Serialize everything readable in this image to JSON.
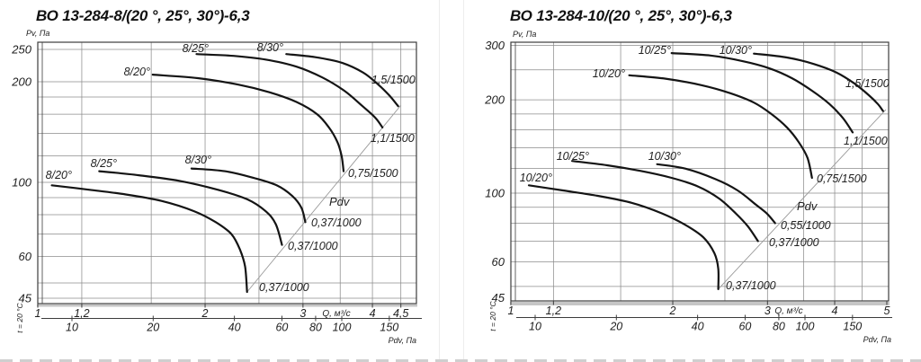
{
  "page": {
    "background": "#ffffff",
    "text_color": "#1f1f1f",
    "grid_color": "#8c8c8c",
    "frame_color": "#3c3c3c",
    "curve_color": "#141414",
    "diagonal_color": "#9a9a9a",
    "band_color": "#b3b3b3"
  },
  "chart_data": [
    {
      "type": "line",
      "title": "ВО 13-284-8/(20 °, 25°, 30°)-6,3",
      "ylabel": "Pv, Па",
      "xlabel": "Q, м³/с",
      "pdv_axis_label": "Pdv, Па",
      "pdv_diagonal_label": "Pdv",
      "temperature_note": "t = 20 °C",
      "xlim": [
        1,
        4.7
      ],
      "ylim": [
        45,
        260
      ],
      "grid": "log-log",
      "y_gridlines": [
        250,
        200,
        180,
        160,
        140,
        120,
        100,
        90,
        80,
        70,
        60,
        50,
        45
      ],
      "y_ticks": [
        {
          "v": 250,
          "label": "250"
        },
        {
          "v": 200,
          "label": "200"
        },
        {
          "v": 100,
          "label": "100"
        },
        {
          "v": 60,
          "label": "60"
        },
        {
          "v": 45,
          "label": "45"
        }
      ],
      "x_gridlines": [
        1.2,
        1.6,
        2,
        2.5,
        3,
        3.5,
        4,
        4.5
      ],
      "q_ticks": [
        {
          "v": 1,
          "label": "1"
        },
        {
          "v": 1.2,
          "label": "1,2"
        },
        {
          "v": 2,
          "label": "2"
        },
        {
          "v": 3,
          "label": "3"
        },
        {
          "v": 4,
          "label": "4"
        },
        {
          "v": 4.5,
          "label": "4,5"
        }
      ],
      "pdv_ticks": [
        {
          "v": 10,
          "label": "10"
        },
        {
          "v": 20,
          "label": "20"
        },
        {
          "v": 40,
          "label": "40"
        },
        {
          "v": 60,
          "label": "60"
        },
        {
          "v": 80,
          "label": "80"
        },
        {
          "v": 100,
          "label": "100"
        },
        {
          "v": 150,
          "label": "150"
        }
      ],
      "pdv_label_at": [
        366,
        229
      ],
      "diagonal": [
        [
          2.38,
          47
        ],
        [
          4.5,
          170
        ]
      ],
      "series": [
        {
          "name": "8/20° 1500rpm",
          "label": "8/20°",
          "label_at": [
            167,
            84
          ],
          "end_label": "0,75/1500",
          "end_label_at": [
            387,
            197
          ],
          "points": [
            [
              1.61,
              210
            ],
            [
              1.94,
              205
            ],
            [
              2.3,
              196
            ],
            [
              2.61,
              186
            ],
            [
              2.92,
              174
            ],
            [
              3.18,
              160
            ],
            [
              3.34,
              146
            ],
            [
              3.46,
              132
            ],
            [
              3.52,
              120
            ],
            [
              3.55,
              108
            ]
          ]
        },
        {
          "name": "8/25° 1500rpm",
          "label": "8/25°",
          "label_at": [
            232,
            58
          ],
          "end_label": "1,1/1500",
          "end_label_at": [
            412,
            158
          ],
          "points": [
            [
              1.93,
              242
            ],
            [
              2.25,
              239
            ],
            [
              2.57,
              233
            ],
            [
              2.92,
              222
            ],
            [
              3.25,
              206
            ],
            [
              3.56,
              188
            ],
            [
              3.84,
              169
            ],
            [
              4.05,
              156
            ],
            [
              4.17,
              146
            ]
          ]
        },
        {
          "name": "8/30° 1500rpm",
          "label": "8/30°",
          "label_at": [
            315,
            57
          ],
          "end_label": "1,5/1500",
          "end_label_at": [
            413,
            93
          ],
          "points": [
            [
              2.8,
              242
            ],
            [
              3.15,
              237
            ],
            [
              3.52,
              228
            ],
            [
              3.85,
              213
            ],
            [
              4.1,
              196
            ],
            [
              4.29,
              182
            ],
            [
              4.45,
              169
            ]
          ]
        },
        {
          "name": "8/20° 1000rpm",
          "label": "8/20°",
          "label_at": [
            80,
            199
          ],
          "end_label": "0,37/1000",
          "end_label_at": [
            288,
            324
          ],
          "points": [
            [
              1.06,
              98
            ],
            [
              1.24,
              95
            ],
            [
              1.44,
              92
            ],
            [
              1.67,
              88
            ],
            [
              1.91,
              82
            ],
            [
              2.09,
              76
            ],
            [
              2.23,
              70
            ],
            [
              2.31,
              63
            ],
            [
              2.36,
              56
            ],
            [
              2.38,
              47
            ]
          ]
        },
        {
          "name": "8/25° 1000rpm",
          "label": "8/25°",
          "label_at": [
            130,
            186
          ],
          "end_label": "0,37/1000",
          "end_label_at": [
            320,
            278
          ],
          "points": [
            [
              1.29,
              108
            ],
            [
              1.52,
              105
            ],
            [
              1.8,
              101
            ],
            [
              2.11,
              95
            ],
            [
              2.38,
              89
            ],
            [
              2.57,
              82
            ],
            [
              2.68,
              75
            ],
            [
              2.75,
              65
            ]
          ]
        },
        {
          "name": "8/30° 1000rpm",
          "label": "8/30°",
          "label_at": [
            235,
            182
          ],
          "end_label": "0,37/1000",
          "end_label_at": [
            346,
            252
          ],
          "points": [
            [
              1.89,
              110
            ],
            [
              2.17,
              108
            ],
            [
              2.45,
              103
            ],
            [
              2.69,
              98
            ],
            [
              2.87,
              91
            ],
            [
              2.98,
              84
            ],
            [
              3.03,
              76
            ]
          ]
        }
      ]
    },
    {
      "type": "line",
      "title": "ВО 13-284-10/(20 °, 25°, 30°)-6,3",
      "ylabel": "Pv, Па",
      "xlabel": "Q, м³/с",
      "pdv_axis_label": "Pdv, Па",
      "pdv_diagonal_label": "Pdv",
      "temperature_note": "t = 20 °C",
      "xlim": [
        1,
        5
      ],
      "ylim": [
        45,
        300
      ],
      "grid": "log-log",
      "y_gridlines": [
        300,
        250,
        200,
        180,
        160,
        140,
        120,
        100,
        90,
        80,
        70,
        60,
        50,
        45
      ],
      "y_ticks": [
        {
          "v": 300,
          "label": "300"
        },
        {
          "v": 200,
          "label": "200"
        },
        {
          "v": 100,
          "label": "100"
        },
        {
          "v": 60,
          "label": "60"
        },
        {
          "v": 45,
          "label": "45"
        }
      ],
      "x_gridlines": [
        1.2,
        1.6,
        2,
        2.5,
        3,
        3.5,
        4,
        4.5
      ],
      "q_ticks": [
        {
          "v": 1,
          "label": "1"
        },
        {
          "v": 1.2,
          "label": "1,2"
        },
        {
          "v": 2,
          "label": "2"
        },
        {
          "v": 3,
          "label": "3"
        },
        {
          "v": 4,
          "label": "4"
        },
        {
          "v": 5,
          "label": "5"
        }
      ],
      "pdv_ticks": [
        {
          "v": 10,
          "label": "10"
        },
        {
          "v": 20,
          "label": "20"
        },
        {
          "v": 40,
          "label": "40"
        },
        {
          "v": 60,
          "label": "60"
        },
        {
          "v": 80,
          "label": "80"
        },
        {
          "v": 100,
          "label": "100"
        },
        {
          "v": 150,
          "label": "150"
        }
      ],
      "pdv_label_at": [
        886,
        234
      ],
      "diagonal": [
        [
          2.43,
          49
        ],
        [
          4.98,
          186
        ]
      ],
      "series": [
        {
          "name": "10/20° 1500rpm",
          "label": "10/20°",
          "label_at": [
            695,
            86
          ],
          "end_label": "0,75/1500",
          "end_label_at": [
            908,
            203
          ],
          "points": [
            [
              1.66,
              240
            ],
            [
              1.94,
              234
            ],
            [
              2.26,
              223
            ],
            [
              2.56,
              210
            ],
            [
              2.83,
              196
            ],
            [
              3.05,
              180
            ],
            [
              3.26,
              163
            ],
            [
              3.43,
              146
            ],
            [
              3.56,
              130
            ],
            [
              3.63,
              112
            ]
          ]
        },
        {
          "name": "10/25° 1500rpm",
          "label": "10/25°",
          "label_at": [
            746,
            60
          ],
          "end_label": "1,1/1500",
          "end_label_at": [
            938,
            161
          ],
          "points": [
            [
              1.99,
              283
            ],
            [
              2.35,
              278
            ],
            [
              2.69,
              267
            ],
            [
              3.02,
              253
            ],
            [
              3.33,
              235
            ],
            [
              3.63,
              214
            ],
            [
              3.91,
              194
            ],
            [
              4.14,
              175
            ],
            [
              4.32,
              157
            ]
          ]
        },
        {
          "name": "10/30° 1500rpm",
          "label": "10/30°",
          "label_at": [
            836,
            60
          ],
          "end_label": "1,5/1500",
          "end_label_at": [
            940,
            97
          ],
          "points": [
            [
              2.83,
              282
            ],
            [
              3.26,
              274
            ],
            [
              3.66,
              261
            ],
            [
              4.03,
              245
            ],
            [
              4.35,
              226
            ],
            [
              4.63,
              207
            ],
            [
              4.81,
              194
            ],
            [
              4.92,
              184
            ]
          ]
        },
        {
          "name": "10/20° 1000rpm",
          "label": "10/20°",
          "label_at": [
            614,
            202
          ],
          "end_label": "0,37/1000",
          "end_label_at": [
            807,
            322
          ],
          "points": [
            [
              1.08,
              106
            ],
            [
              1.25,
              102
            ],
            [
              1.45,
              98
            ],
            [
              1.68,
              93
            ],
            [
              1.91,
              86
            ],
            [
              2.11,
              79
            ],
            [
              2.28,
              72
            ],
            [
              2.39,
              64
            ],
            [
              2.43,
              57
            ],
            [
              2.43,
              49
            ]
          ]
        },
        {
          "name": "10/25° 1000rpm",
          "label": "10/25°",
          "label_at": [
            655,
            178
          ],
          "end_label": "0,37/1000",
          "end_label_at": [
            855,
            274
          ],
          "points": [
            [
              1.3,
              127
            ],
            [
              1.51,
              123
            ],
            [
              1.74,
              118
            ],
            [
              1.99,
              112
            ],
            [
              2.23,
              105
            ],
            [
              2.44,
              96
            ],
            [
              2.62,
              86
            ],
            [
              2.76,
              78
            ],
            [
              2.88,
              70
            ]
          ]
        },
        {
          "name": "10/30° 1000rpm",
          "label": "10/30°",
          "label_at": [
            757,
            178
          ],
          "end_label": "0,55/1000",
          "end_label_at": [
            868,
            255
          ],
          "points": [
            [
              1.87,
              124
            ],
            [
              2.11,
              120
            ],
            [
              2.4,
              111
            ],
            [
              2.64,
              102
            ],
            [
              2.85,
              92
            ],
            [
              2.99,
              86
            ],
            [
              3.1,
              80
            ]
          ]
        }
      ]
    }
  ]
}
